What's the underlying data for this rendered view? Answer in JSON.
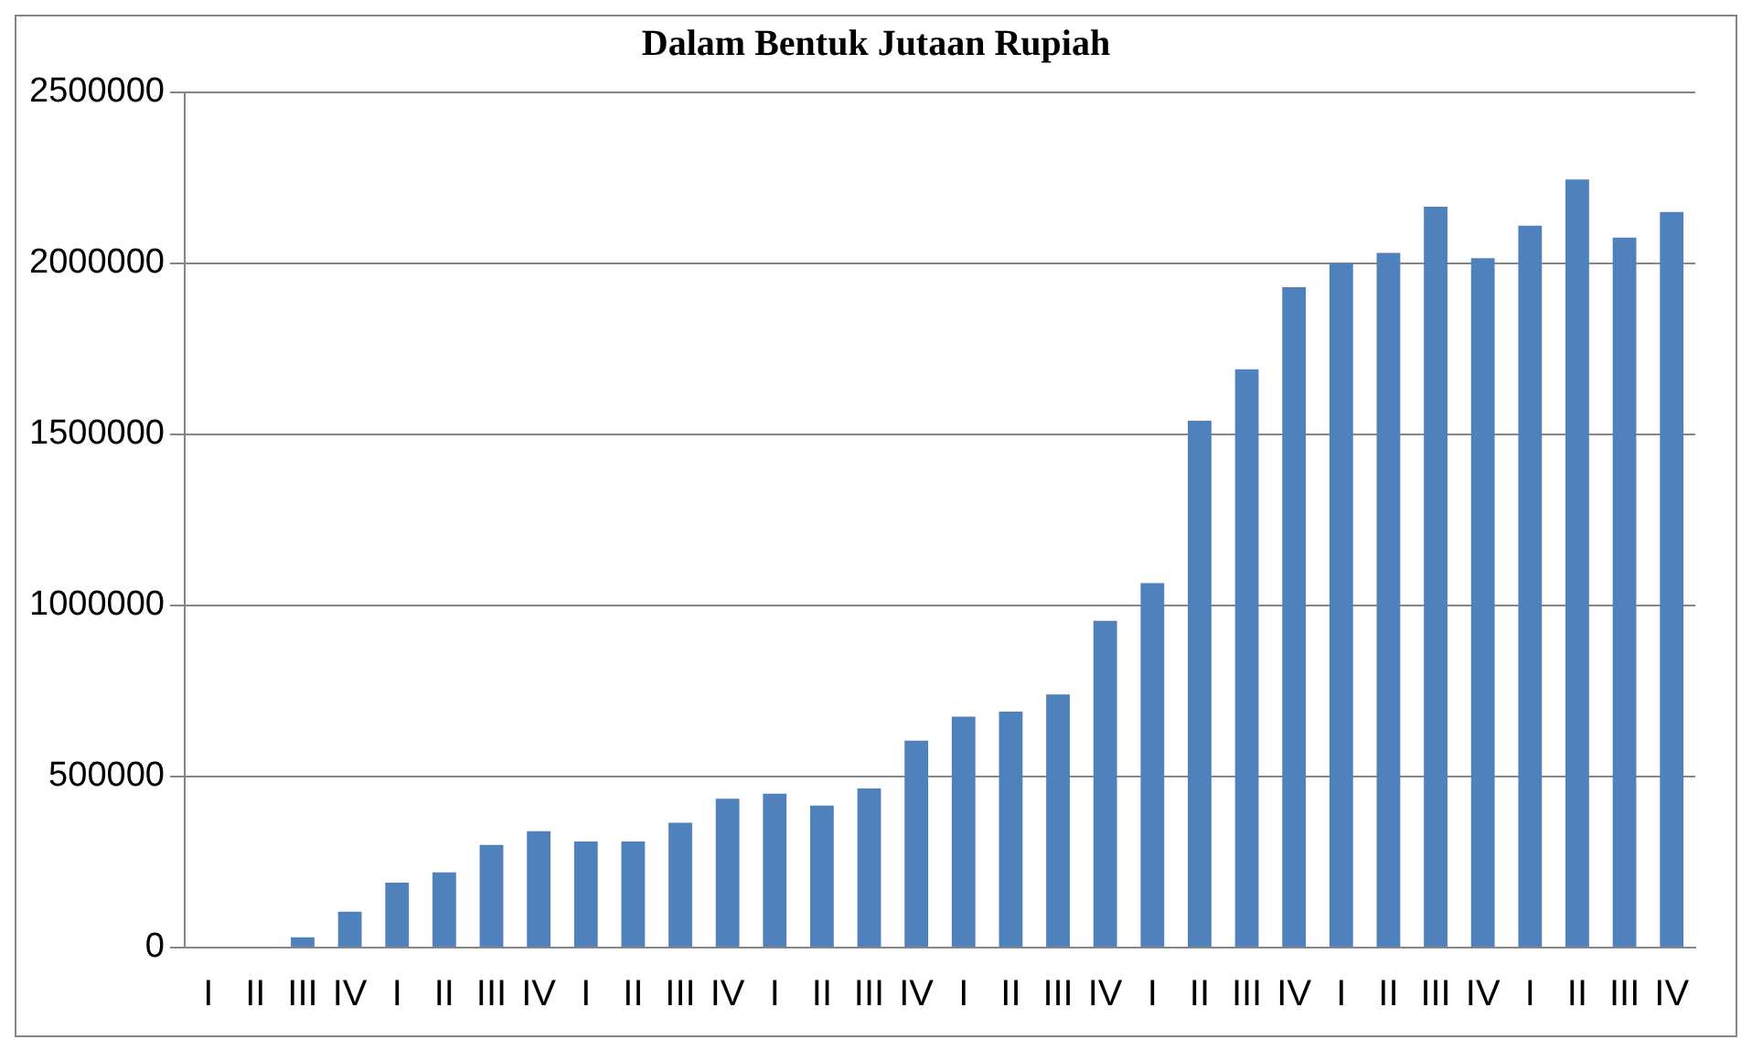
{
  "chart_data": {
    "type": "bar",
    "title": "Dalam Bentuk Jutaan Rupiah",
    "categories": [
      "I",
      "II",
      "III",
      "IV",
      "I",
      "II",
      "III",
      "IV",
      "I",
      "II",
      "III",
      "IV",
      "I",
      "II",
      "III",
      "IV",
      "I",
      "II",
      "III",
      "IV",
      "I",
      "II",
      "III",
      "IV",
      "I",
      "II",
      "III",
      "IV",
      "I",
      "II",
      "III",
      "IV"
    ],
    "values": [
      0,
      0,
      30000,
      105000,
      190000,
      220000,
      300000,
      340000,
      310000,
      310000,
      365000,
      435000,
      450000,
      415000,
      465000,
      605000,
      675000,
      690000,
      740000,
      955000,
      1065000,
      1540000,
      1690000,
      1930000,
      2000000,
      2030000,
      2165000,
      2015000,
      2110000,
      2245000,
      2075000,
      2150000
    ],
    "color": "#4f81bd",
    "ylim": [
      0,
      2500000
    ],
    "yticks": [
      0,
      500000,
      1000000,
      1500000,
      2000000,
      2500000
    ],
    "grid": "y"
  }
}
